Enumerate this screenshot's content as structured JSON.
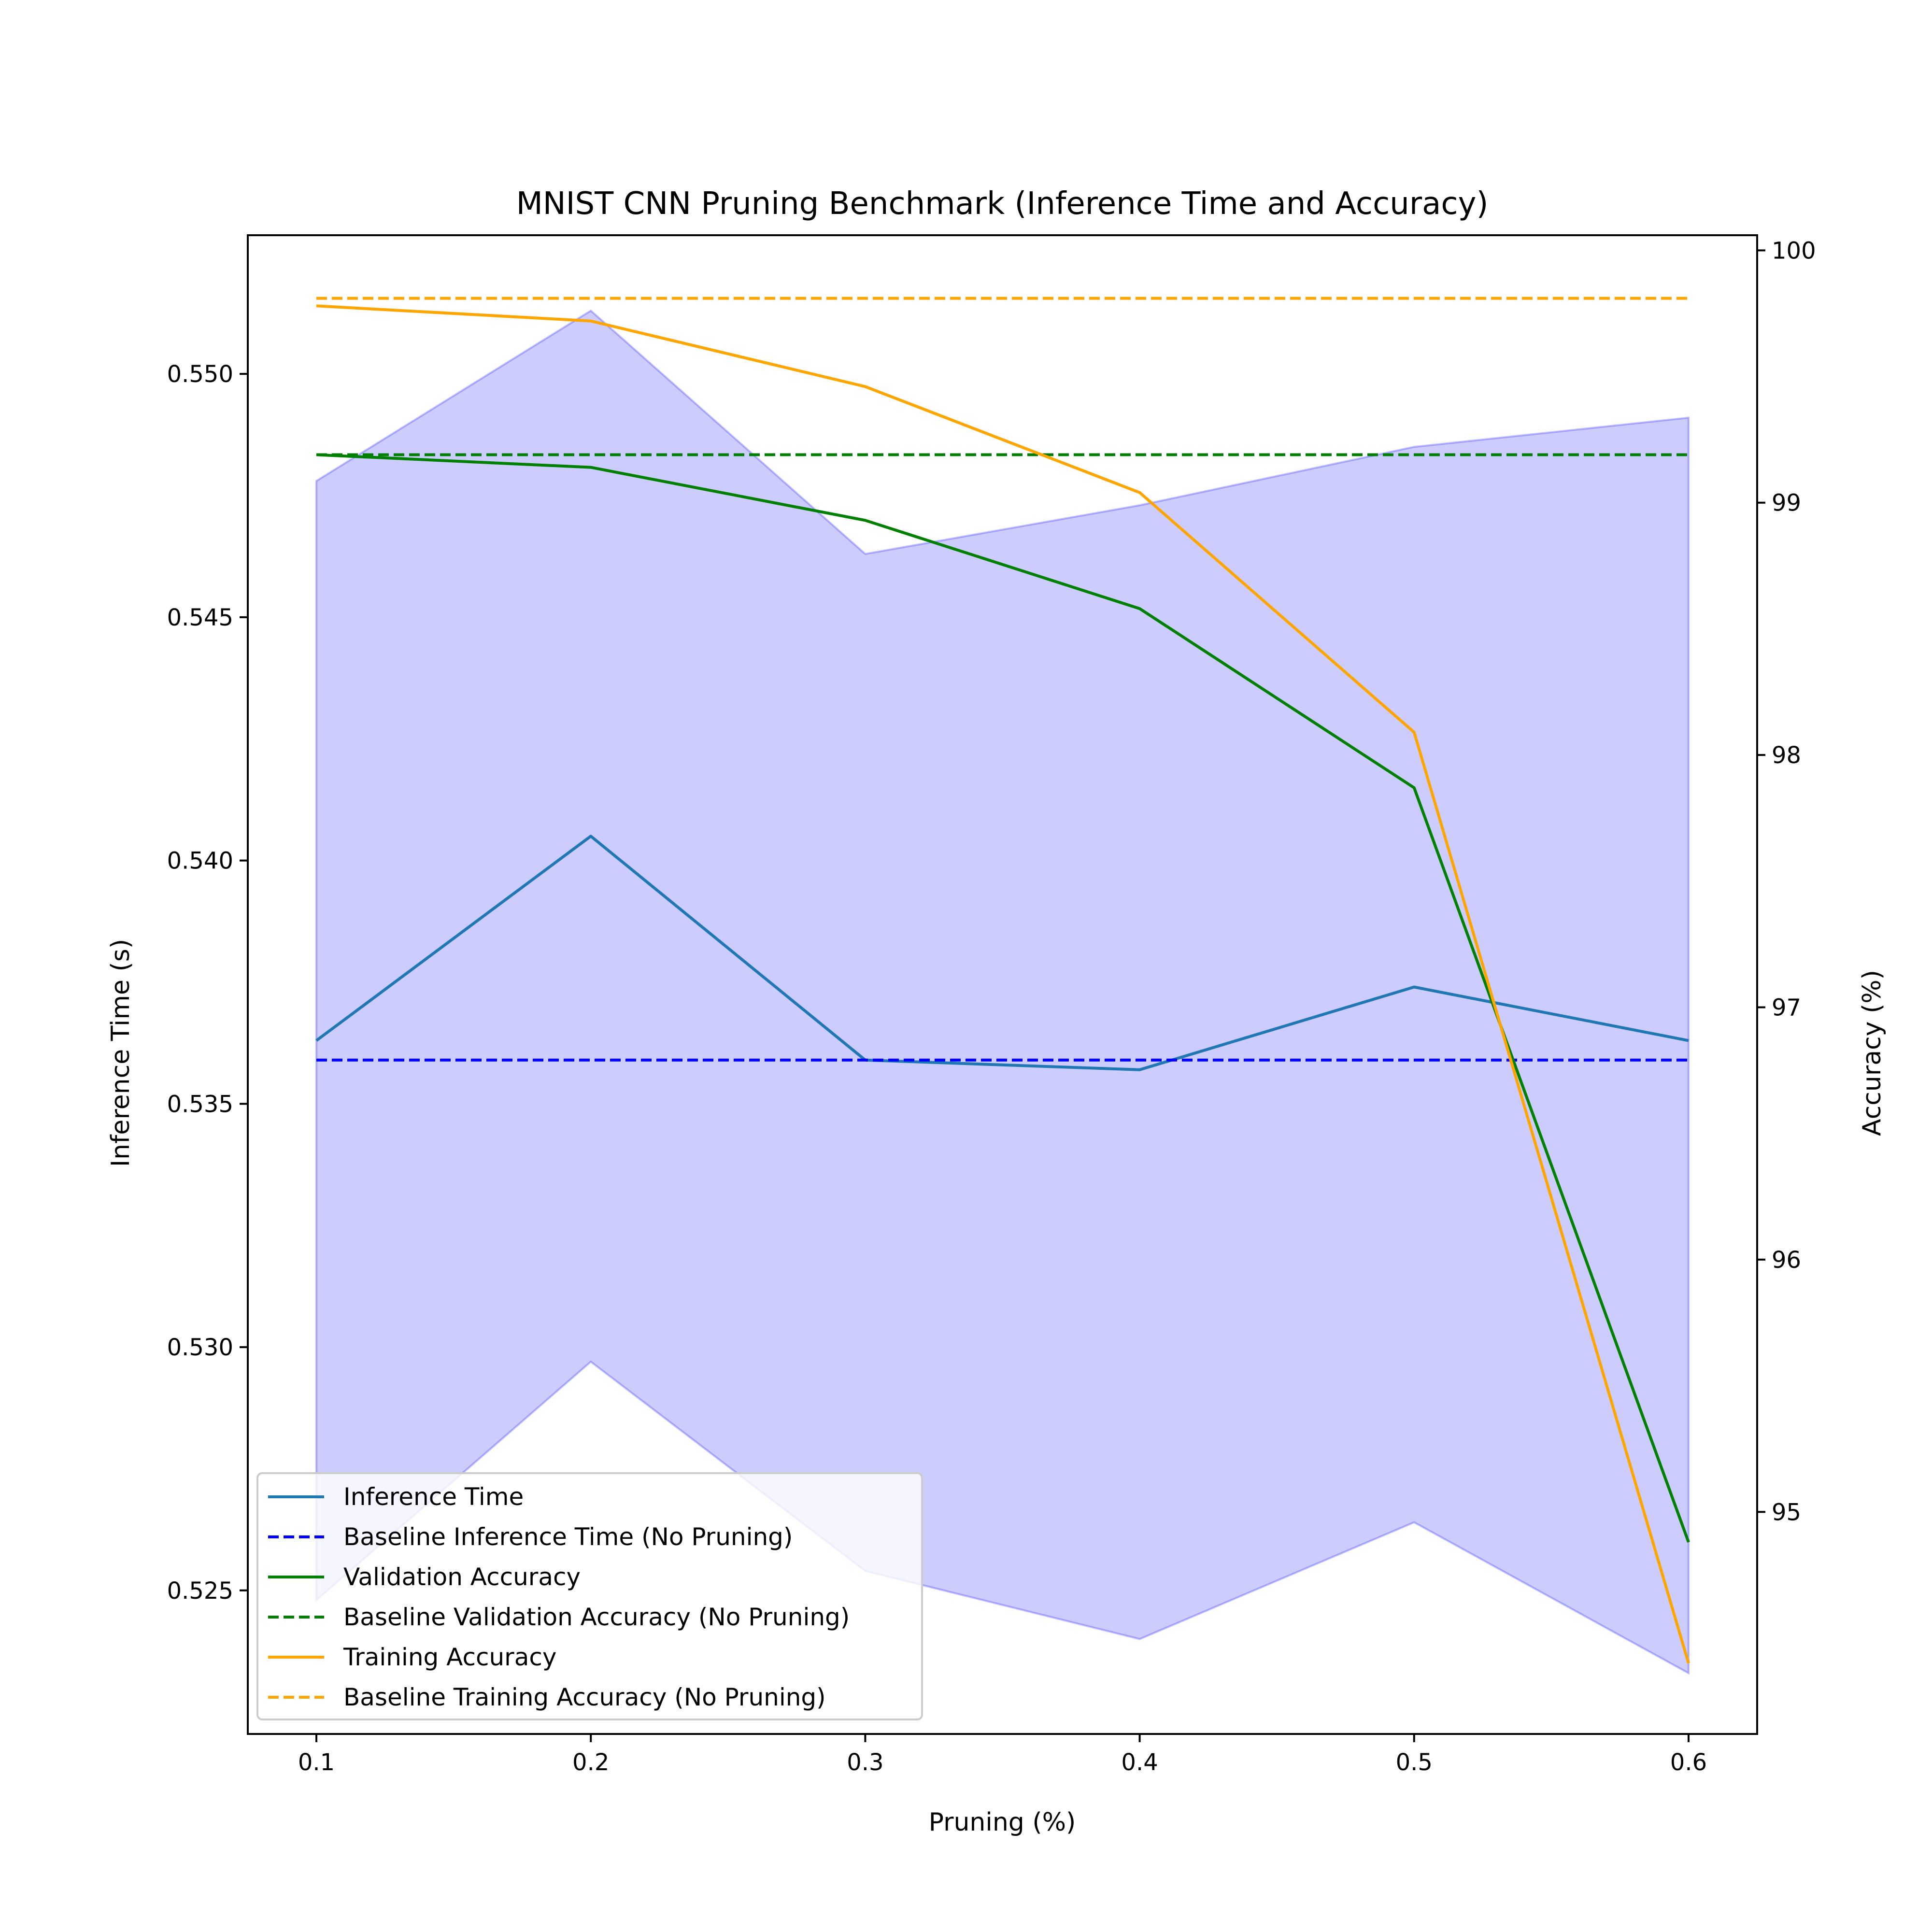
{
  "chart_data": {
    "type": "line",
    "title": "MNIST CNN Pruning Benchmark (Inference Time and Accuracy)",
    "xlabel": "Pruning (%)",
    "ylabel_left": "Inference Time (s)",
    "ylabel_right": "Accuracy (%)",
    "x": [
      0.1,
      0.2,
      0.3,
      0.4,
      0.5,
      0.6
    ],
    "x_ticks": [
      "0.1",
      "0.2",
      "0.3",
      "0.4",
      "0.5",
      "0.6"
    ],
    "xlim": [
      0.075,
      0.625
    ],
    "ylim_left": [
      0.52205,
      0.55285
    ],
    "ylim_right": [
      94.12,
      100.06
    ],
    "y_ticks_left": [
      "0.525",
      "0.530",
      "0.535",
      "0.540",
      "0.545",
      "0.550"
    ],
    "y_ticks_left_values": [
      0.525,
      0.53,
      0.535,
      0.54,
      0.545,
      0.55
    ],
    "y_ticks_right": [
      "95",
      "96",
      "97",
      "98",
      "99",
      "100"
    ],
    "y_ticks_right_values": [
      95,
      96,
      97,
      98,
      99,
      100
    ],
    "grid": false,
    "legend_position": "lower-left",
    "band": {
      "axis": "left",
      "color": "#0000ff",
      "opacity": 0.2,
      "upper": [
        0.5478,
        0.5513,
        0.5463,
        0.5473,
        0.5485,
        0.5491
      ],
      "lower": [
        0.5248,
        0.5297,
        0.5254,
        0.524,
        0.5264,
        0.5233
      ]
    },
    "series": [
      {
        "name": "Inference Time",
        "axis": "left",
        "color": "#1f77b4",
        "dash": "solid",
        "values": [
          0.5363,
          0.5405,
          0.5359,
          0.5357,
          0.5374,
          0.5363
        ]
      },
      {
        "name": "Baseline Inference Time (No Pruning)",
        "axis": "left",
        "color": "#0000ff",
        "dash": "dashed",
        "values": [
          0.5359,
          0.5359,
          0.5359,
          0.5359,
          0.5359,
          0.5359
        ]
      },
      {
        "name": "Validation Accuracy",
        "axis": "right",
        "color": "#008000",
        "dash": "solid",
        "values": [
          99.19,
          99.14,
          98.93,
          98.58,
          97.87,
          94.88
        ]
      },
      {
        "name": "Baseline Validation Accuracy (No Pruning)",
        "axis": "right",
        "color": "#008000",
        "dash": "dashed",
        "values": [
          99.19,
          99.19,
          99.19,
          99.19,
          99.19,
          99.19
        ]
      },
      {
        "name": "Training Accuracy",
        "axis": "right",
        "color": "#ffa500",
        "dash": "solid",
        "values": [
          99.78,
          99.72,
          99.46,
          99.04,
          98.09,
          94.4
        ]
      },
      {
        "name": "Baseline Training Accuracy (No Pruning)",
        "axis": "right",
        "color": "#ffa500",
        "dash": "dashed",
        "values": [
          99.81,
          99.81,
          99.81,
          99.81,
          99.81,
          99.81
        ]
      }
    ]
  }
}
